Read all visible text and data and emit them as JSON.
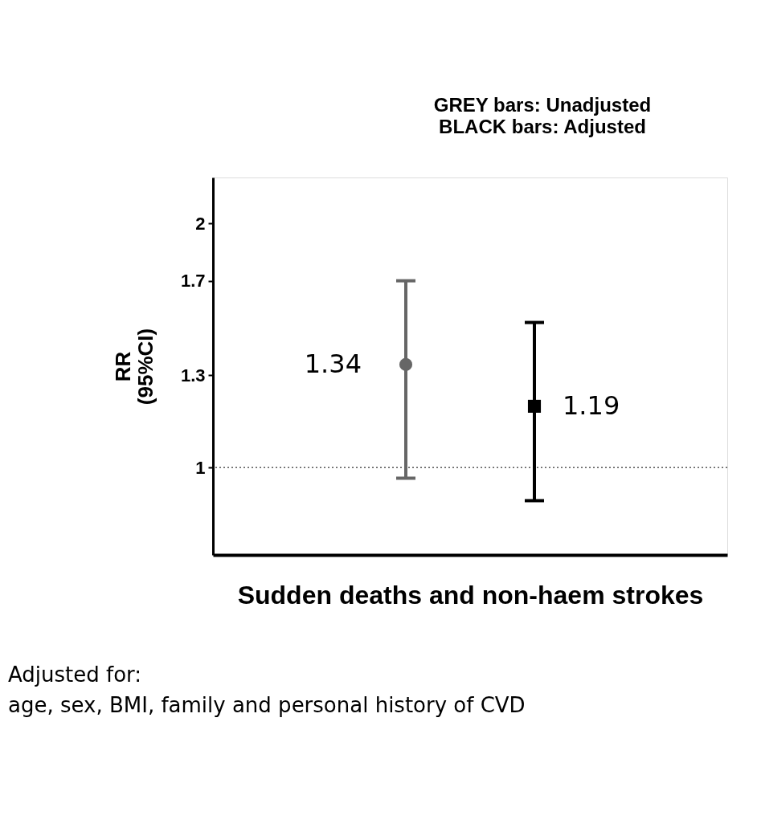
{
  "chart_data": {
    "type": "scatter",
    "title": "GREY bars: Unadjusted",
    "subtitle": "BLACK bars:  Adjusted",
    "xlabel": "Sudden deaths and non-haem strokes",
    "ylabel": "RR (95%CI)",
    "annotations": [
      "Adjusted for:",
      "age, sex, BMI, family and personal history of CVD"
    ],
    "categories": [
      null,
      null
    ],
    "series": [
      {
        "color": "#666666",
        "marker": "circle",
        "values": [
          1.34,
          null
        ],
        "errors": [
          [
            0.97,
            1.7
          ],
          null
        ],
        "value_labels": [
          "1.34",
          null
        ]
      },
      {
        "color": "#000000",
        "marker": "square",
        "values": [
          null,
          1.19
        ],
        "errors": [
          null,
          [
            0.91,
            1.51
          ]
        ],
        "value_labels": [
          null,
          "1.19"
        ]
      }
    ],
    "ylim": [
      0.78,
      2.28
    ],
    "yticks": [
      1,
      1.3,
      1.7,
      2
    ],
    "log": "y",
    "grid": false,
    "tick_labels": "y",
    "ref_lines": [
      {
        "axis": "y",
        "value": 1,
        "line_style": "dotted",
        "color": "#000000"
      }
    ]
  }
}
